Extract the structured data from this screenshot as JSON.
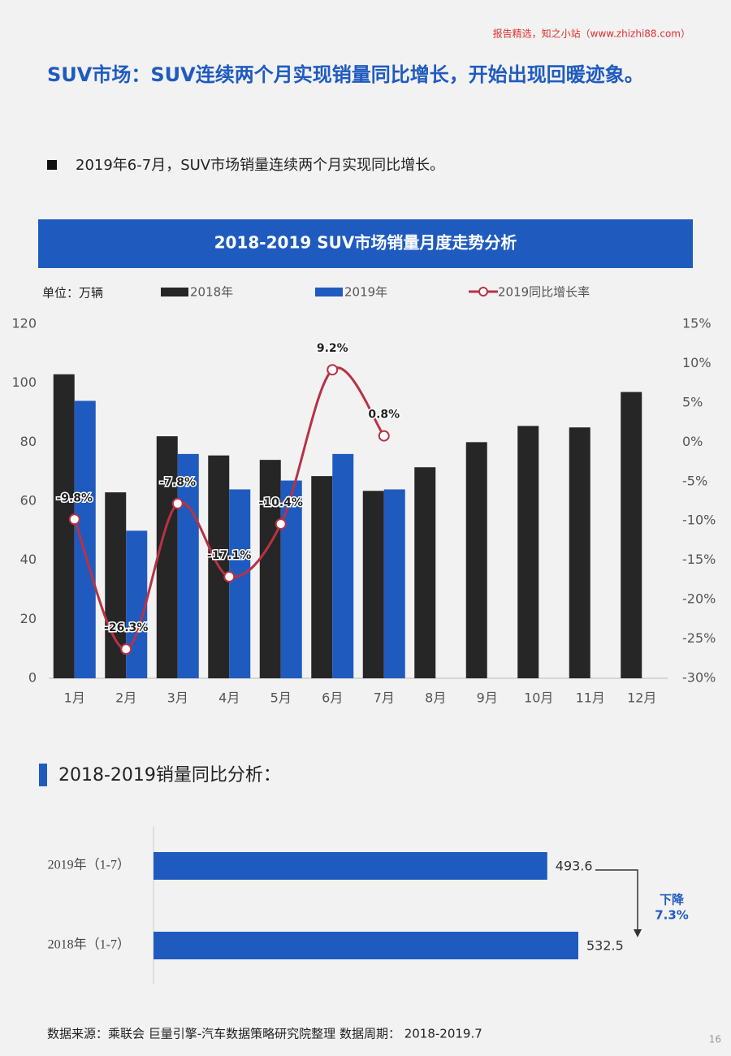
{
  "watermark": "报告精选，知之小站（www.zhizhi88.com）",
  "title": "SUV市场：SUV连续两个月实现销量同比增长，开始出现回暖迹象。",
  "bullet": "2019年6-7月，SUV市场销量连续两个月实现同比增长。",
  "section_title": "2018-2019销量同比分析：",
  "source": "数据来源：乘联会 巨量引擎-汽车数据策略研究院整理 数据周期： 2018-2019.7",
  "page_number": 16,
  "chart_data": [
    {
      "type": "bar",
      "title": "2018-2019 SUV市场销量月度走势分析",
      "unit": "单位：万辆",
      "categories": [
        "1月",
        "2月",
        "3月",
        "4月",
        "5月",
        "6月",
        "7月",
        "8月",
        "9月",
        "10月",
        "11月",
        "12月"
      ],
      "series": [
        {
          "name": "2018年",
          "color": "#262626",
          "values": [
            103,
            63,
            82,
            75.5,
            74,
            68.5,
            63.5,
            71.5,
            80,
            85.5,
            85,
            97
          ]
        },
        {
          "name": "2019年",
          "color": "#1f5bbf",
          "values": [
            94,
            50,
            76,
            64,
            67,
            76,
            64,
            null,
            null,
            null,
            null,
            null
          ]
        },
        {
          "name": "2019同比增长率",
          "color": "#b83245",
          "type": "line",
          "axis": "y2",
          "values": [
            -9.8,
            -26.3,
            -7.8,
            -17.1,
            -10.4,
            9.2,
            0.8,
            null,
            null,
            null,
            null,
            null
          ],
          "value_labels": [
            "-9.8%",
            "-26.3%",
            "-7.8%",
            "-17.1%",
            "-10.4%",
            "9.2%",
            "0.8%",
            null,
            null,
            null,
            null,
            null
          ]
        }
      ],
      "ylim": [
        0,
        120
      ],
      "yticks": [
        0,
        20,
        40,
        60,
        80,
        100,
        120
      ],
      "y2lim": [
        -30,
        15
      ],
      "y2ticks": [
        {
          "value": -30,
          "label": "-30%"
        },
        {
          "value": -25,
          "label": "-25%"
        },
        {
          "value": -20,
          "label": "-20%"
        },
        {
          "value": -15,
          "label": "-15%"
        },
        {
          "value": -10,
          "label": "-10%"
        },
        {
          "value": -5,
          "label": "-5%"
        },
        {
          "value": 0,
          "label": "0%"
        },
        {
          "value": 5,
          "label": "5%"
        },
        {
          "value": 10,
          "label": "10%"
        },
        {
          "value": 15,
          "label": "15%"
        }
      ]
    },
    {
      "type": "hbar",
      "categories": [
        "2019年（1-7）",
        "2018年（1-7）"
      ],
      "values": [
        493.6,
        532.5
      ],
      "color": "#1f5bbf",
      "annotation": [
        "下降",
        "7.3%"
      ]
    }
  ]
}
